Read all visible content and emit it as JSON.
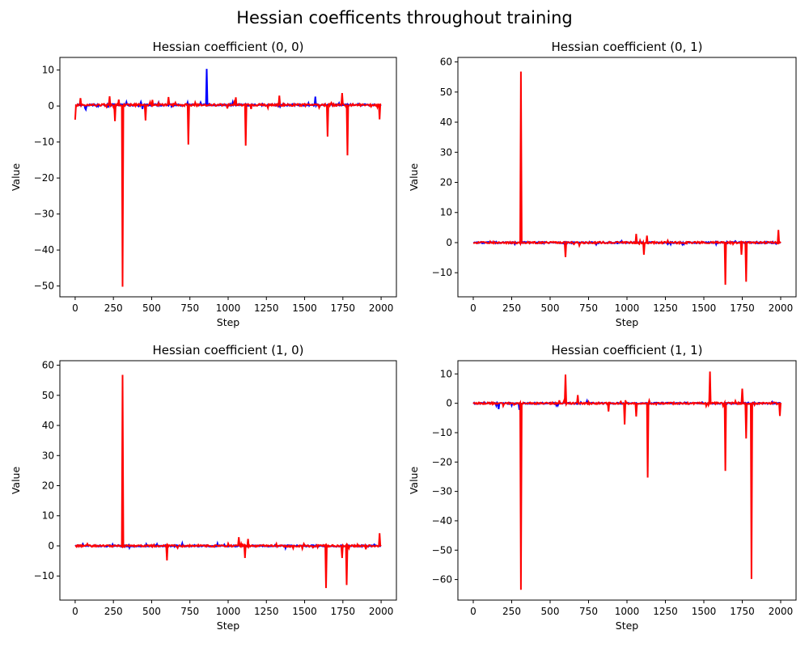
{
  "figure": {
    "title": "Hessian coefficents throughout training"
  },
  "colors": {
    "series_a": "#0000ff",
    "series_b": "#ff0000",
    "axis": "#000000",
    "background": "#ffffff"
  },
  "chart_data": [
    {
      "type": "line",
      "title": "Hessian coefficient (0, 0)",
      "xlabel": "Step",
      "ylabel": "Value",
      "xlim": [
        -100,
        2100
      ],
      "ylim": [
        -53,
        13.5
      ],
      "xticks": [
        0,
        250,
        500,
        750,
        1000,
        1250,
        1500,
        1750,
        2000
      ],
      "yticks": [
        10,
        0,
        -10,
        -20,
        -30,
        -40,
        -50
      ],
      "xtick_labels": [
        "0",
        "250",
        "500",
        "750",
        "1000",
        "1250",
        "1500",
        "1750",
        "2000"
      ],
      "ytick_labels": [
        "10",
        "0",
        "−10",
        "−20",
        "−30",
        "−40",
        "−50"
      ],
      "grid": false,
      "series": [
        {
          "color": "#0000ff",
          "baseline": 0.3,
          "noise": 0.5,
          "spikes": [
            [
              70,
              -1.0
            ],
            [
              440,
              -0.8
            ],
            [
              860,
              10.3
            ],
            [
              1570,
              2.6
            ]
          ]
        },
        {
          "color": "#ff0000",
          "baseline": 0.3,
          "noise": 0.6,
          "spikes": [
            [
              0,
              -3.8
            ],
            [
              35,
              2.2
            ],
            [
              225,
              2.7
            ],
            [
              260,
              -4.2
            ],
            [
              285,
              1.8
            ],
            [
              310,
              -50.2
            ],
            [
              460,
              -4.0
            ],
            [
              505,
              1.7
            ],
            [
              610,
              2.5
            ],
            [
              740,
              -10.7
            ],
            [
              1050,
              2.4
            ],
            [
              1115,
              -11.0
            ],
            [
              1335,
              2.9
            ],
            [
              1650,
              -8.5
            ],
            [
              1745,
              3.6
            ],
            [
              1780,
              -13.7
            ],
            [
              1990,
              -3.7
            ]
          ]
        }
      ]
    },
    {
      "type": "line",
      "title": "Hessian coefficient (0, 1)",
      "xlabel": "Step",
      "ylabel": "Value",
      "xlim": [
        -100,
        2100
      ],
      "ylim": [
        -18,
        61.5
      ],
      "xticks": [
        0,
        250,
        500,
        750,
        1000,
        1250,
        1500,
        1750,
        2000
      ],
      "yticks": [
        60,
        50,
        40,
        30,
        20,
        10,
        0,
        -10
      ],
      "xtick_labels": [
        "0",
        "250",
        "500",
        "750",
        "1000",
        "1250",
        "1500",
        "1750",
        "2000"
      ],
      "ytick_labels": [
        "60",
        "50",
        "40",
        "30",
        "20",
        "10",
        "0",
        "−10"
      ],
      "grid": false,
      "series": [
        {
          "color": "#0000ff",
          "baseline": 0.0,
          "noise": 0.5,
          "spikes": []
        },
        {
          "color": "#ff0000",
          "baseline": 0.0,
          "noise": 0.6,
          "spikes": [
            [
              310,
              56.8
            ],
            [
              600,
              -4.8
            ],
            [
              1060,
              2.9
            ],
            [
              1110,
              -4.0
            ],
            [
              1130,
              2.3
            ],
            [
              1640,
              -14.0
            ],
            [
              1745,
              -4.0
            ],
            [
              1775,
              -13.0
            ],
            [
              1985,
              4.2
            ]
          ]
        }
      ]
    },
    {
      "type": "line",
      "title": "Hessian coefficient (1, 0)",
      "xlabel": "Step",
      "ylabel": "Value",
      "xlim": [
        -100,
        2100
      ],
      "ylim": [
        -18,
        61.5
      ],
      "xticks": [
        0,
        250,
        500,
        750,
        1000,
        1250,
        1500,
        1750,
        2000
      ],
      "yticks": [
        60,
        50,
        40,
        30,
        20,
        10,
        0,
        -10
      ],
      "xtick_labels": [
        "0",
        "250",
        "500",
        "750",
        "1000",
        "1250",
        "1500",
        "1750",
        "2000"
      ],
      "ytick_labels": [
        "60",
        "50",
        "40",
        "30",
        "20",
        "10",
        "0",
        "−10"
      ],
      "grid": false,
      "series": [
        {
          "color": "#0000ff",
          "baseline": 0.0,
          "noise": 0.5,
          "spikes": []
        },
        {
          "color": "#ff0000",
          "baseline": 0.0,
          "noise": 0.6,
          "spikes": [
            [
              310,
              56.8
            ],
            [
              600,
              -4.8
            ],
            [
              1070,
              2.9
            ],
            [
              1110,
              -4.0
            ],
            [
              1130,
              2.3
            ],
            [
              1640,
              -14.0
            ],
            [
              1745,
              -4.0
            ],
            [
              1775,
              -13.0
            ],
            [
              1990,
              4.2
            ]
          ]
        }
      ]
    },
    {
      "type": "line",
      "title": "Hessian coefficient (1, 1)",
      "xlabel": "Step",
      "ylabel": "Value",
      "xlim": [
        -100,
        2100
      ],
      "ylim": [
        -67,
        14.5
      ],
      "xticks": [
        0,
        250,
        500,
        750,
        1000,
        1250,
        1500,
        1750,
        2000
      ],
      "yticks": [
        10,
        0,
        -10,
        -20,
        -30,
        -40,
        -50,
        -60
      ],
      "xtick_labels": [
        "0",
        "250",
        "500",
        "750",
        "1000",
        "1250",
        "1500",
        "1750",
        "2000"
      ],
      "ytick_labels": [
        "10",
        "0",
        "−10",
        "−20",
        "−30",
        "−40",
        "−50",
        "−60"
      ],
      "grid": false,
      "series": [
        {
          "color": "#0000ff",
          "baseline": 0.0,
          "noise": 0.5,
          "spikes": [
            [
              165,
              -2.0
            ],
            [
              300,
              -2.2
            ]
          ]
        },
        {
          "color": "#ff0000",
          "baseline": 0.0,
          "noise": 0.6,
          "spikes": [
            [
              310,
              -63.5
            ],
            [
              600,
              9.8
            ],
            [
              680,
              2.8
            ],
            [
              880,
              -2.8
            ],
            [
              985,
              -7.2
            ],
            [
              1060,
              -4.5
            ],
            [
              1135,
              -25.3
            ],
            [
              1540,
              10.8
            ],
            [
              1640,
              -23.0
            ],
            [
              1750,
              5.0
            ],
            [
              1775,
              -12.0
            ],
            [
              1810,
              -59.8
            ],
            [
              1995,
              -4.3
            ]
          ]
        }
      ]
    }
  ]
}
